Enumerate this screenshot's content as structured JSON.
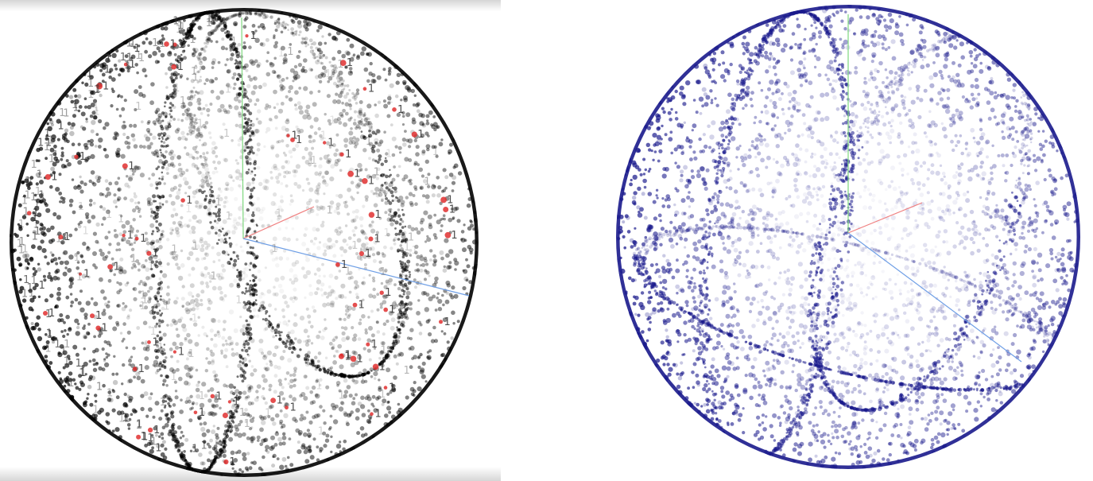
{
  "chart_data": [
    {
      "type": "scatter",
      "view": "3d-sphere-projection",
      "point_color": "#000000",
      "highlight_color": "#e03030",
      "point_label": "1",
      "axes_colors": {
        "x": "#f08080",
        "y": "#7fd87f",
        "z": "#6f9fe6"
      },
      "background": "#ffffff"
    },
    {
      "type": "scatter",
      "view": "3d-sphere-projection",
      "point_color": "#1a1a8c",
      "axes_colors": {
        "x": "#f08080",
        "y": "#7fd87f",
        "z": "#6f9fe6"
      },
      "background": "#ffffff"
    }
  ]
}
